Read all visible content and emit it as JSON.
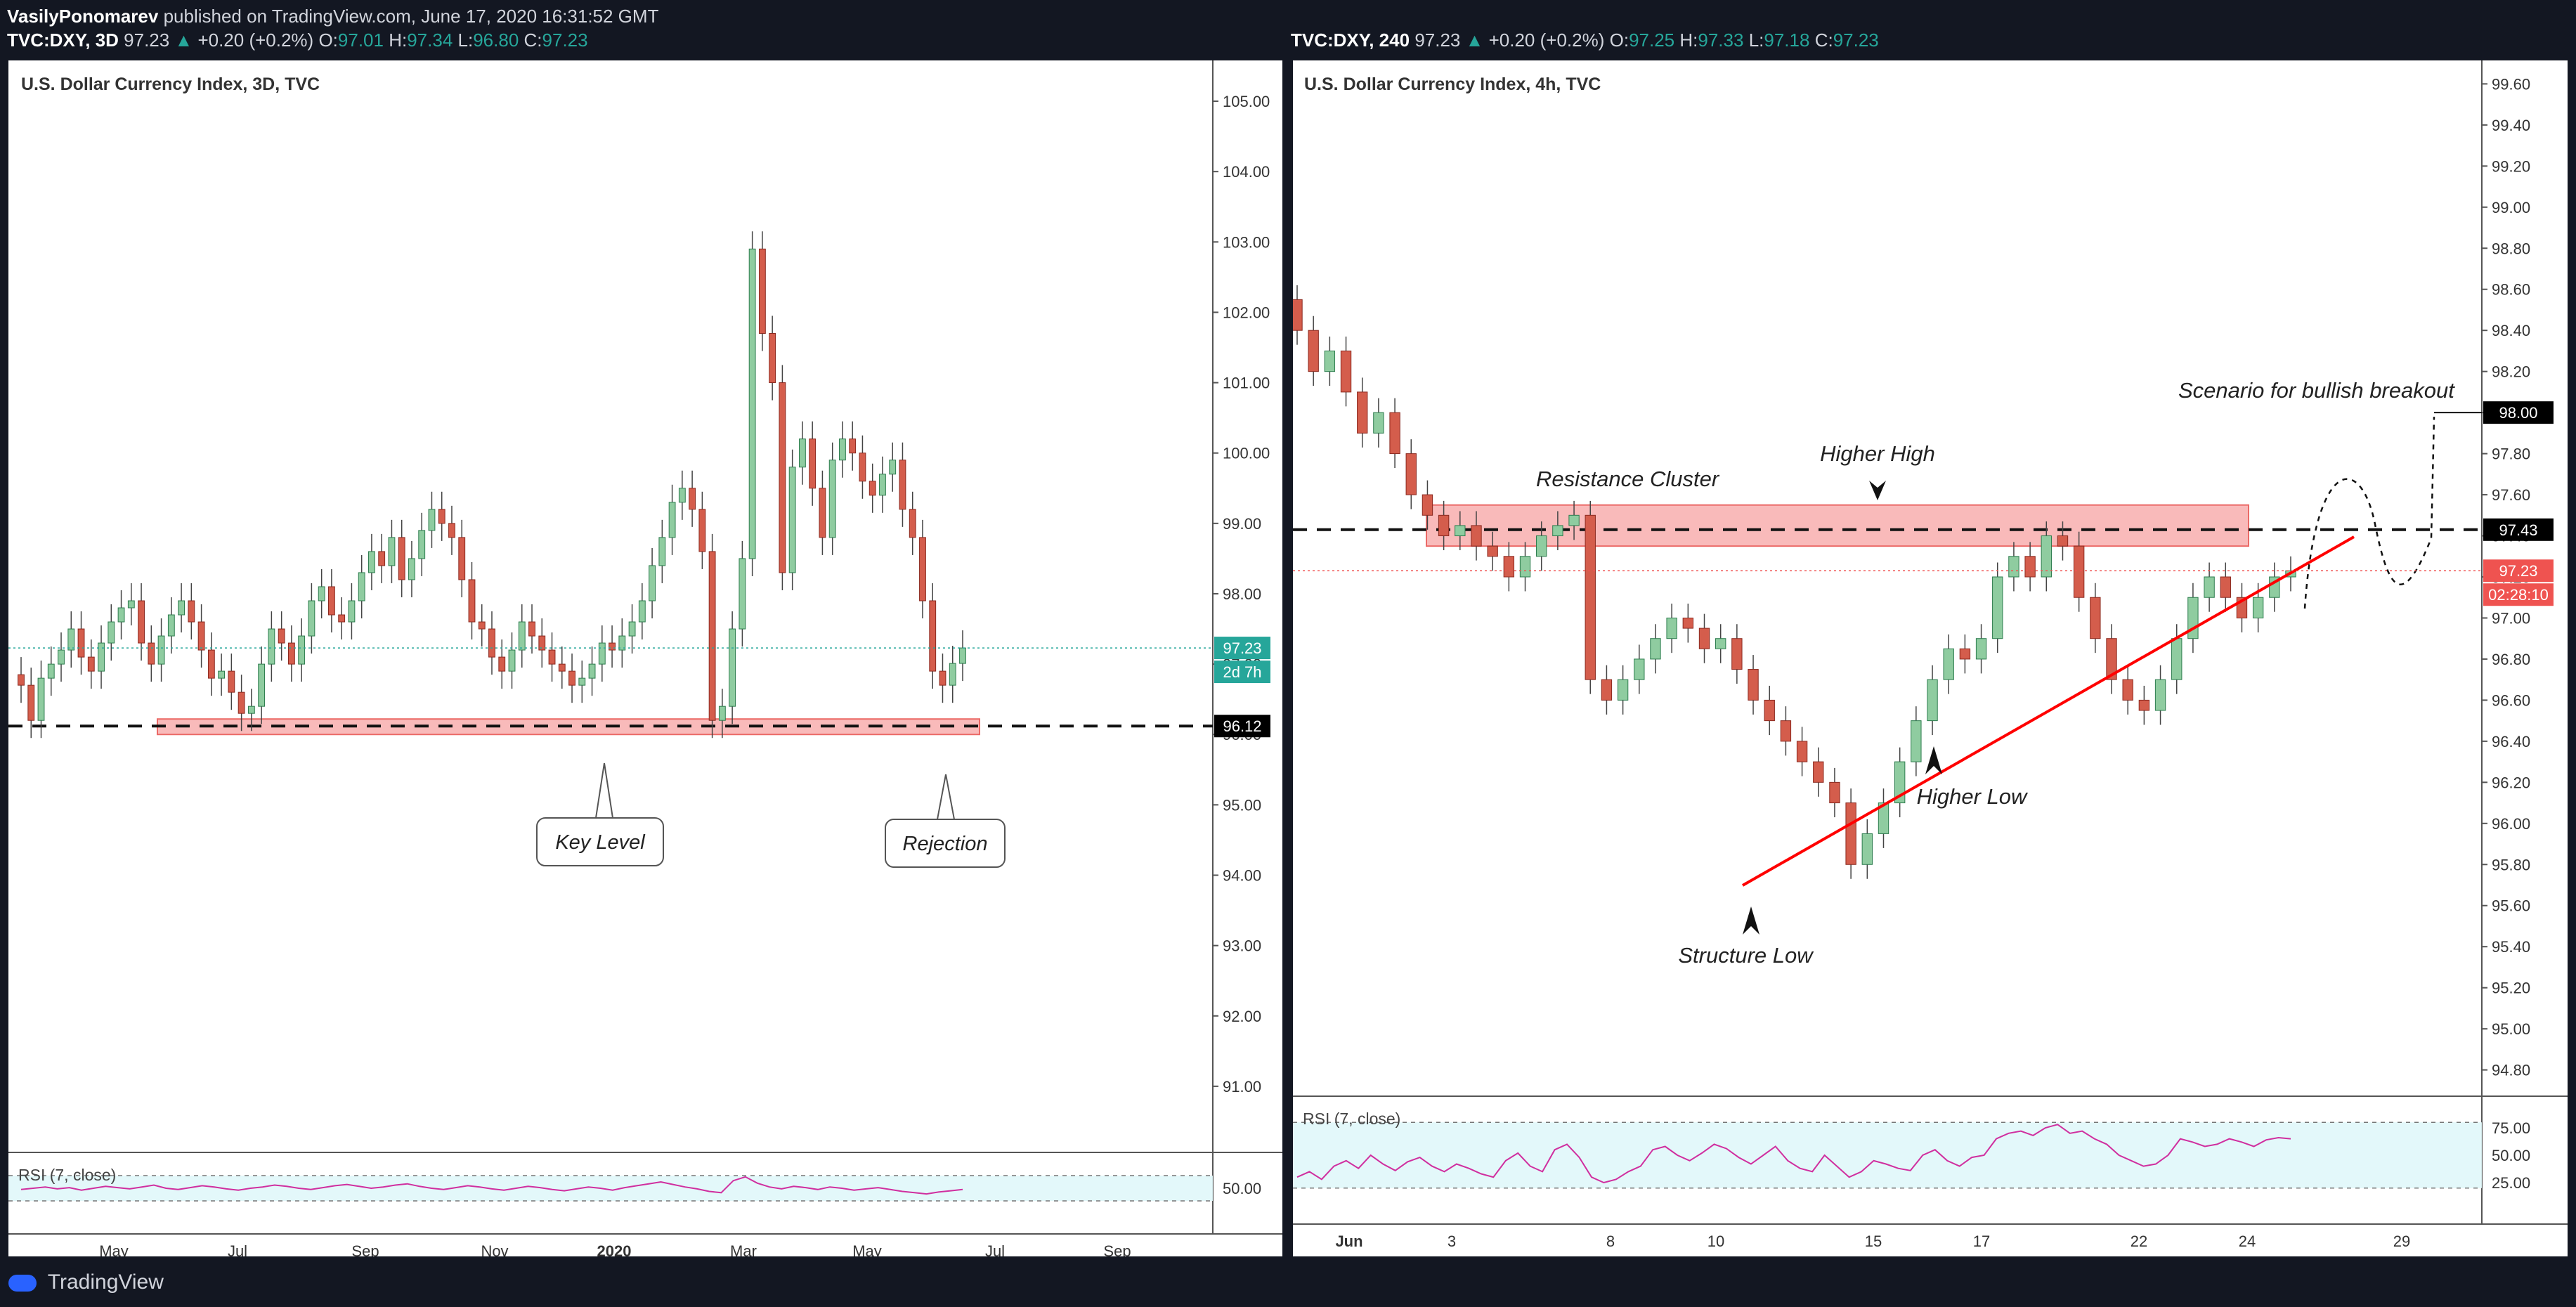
{
  "header": {
    "author": "VasilyPonomarev",
    "published": "published on TradingView.com, June 17, 2020 16:31:52 GMT",
    "left_symbol": "TVC:DXY, 3D",
    "left_price": "97.23",
    "left_change": "+0.20 (+0.2%)",
    "left_o": "97.01",
    "left_h": "97.34",
    "left_l": "96.80",
    "left_c": "97.23",
    "right_symbol": "TVC:DXY, 240",
    "right_price": "97.23",
    "right_change": "+0.20 (+0.2%)",
    "right_o": "97.25",
    "right_h": "97.33",
    "right_l": "97.18",
    "right_c": "97.23"
  },
  "footer": {
    "brand": "TradingView"
  },
  "colors": {
    "up": "#26a69a",
    "upBody": "#8fcca0",
    "down": "#ef5350",
    "downBody": "#d45d4c",
    "zone": "#f7a3a3",
    "rsi": "#d02f9f",
    "trend": "#ff0000"
  },
  "chart_data": [
    {
      "type": "candlestick",
      "title": "U.S. Dollar Currency Index, 3D, TVC",
      "y_range": [
        90.2,
        105.4
      ],
      "y_ticks": [
        "105.00",
        "104.00",
        "103.00",
        "102.00",
        "101.00",
        "100.00",
        "99.00",
        "98.00",
        "97.00",
        "96.00",
        "95.00",
        "94.00",
        "93.00",
        "92.00",
        "91.00"
      ],
      "x_ticks": [
        "May",
        "Jul",
        "Sep",
        "Nov",
        "2020",
        "Mar",
        "May",
        "Jul",
        "Sep"
      ],
      "last_price_label": "97.23",
      "countdown": "2d 7h",
      "level_label": "96.12",
      "key_level": 96.12,
      "support_zone": [
        96.0,
        96.22
      ],
      "annotations": [
        "Key Level",
        "Rejection"
      ],
      "rsi_label": "RSI (7, close)",
      "rsi_ticks": [
        "50.00"
      ],
      "rsi": [
        48,
        50,
        52,
        49,
        51,
        47,
        50,
        53,
        51,
        49,
        52,
        55,
        50,
        48,
        51,
        54,
        52,
        49,
        47,
        50,
        52,
        55,
        53,
        50,
        48,
        51,
        54,
        56,
        53,
        50,
        52,
        55,
        57,
        53,
        50,
        48,
        51,
        54,
        52,
        49,
        47,
        50,
        53,
        51,
        48,
        46,
        49,
        52,
        50,
        47,
        51,
        54,
        57,
        60,
        56,
        52,
        49,
        45,
        43,
        62,
        68,
        58,
        52,
        49,
        53,
        51,
        48,
        52,
        50,
        47,
        49,
        51,
        48,
        45,
        43,
        41,
        44,
        46,
        48
      ],
      "closes": [
        96.7,
        96.2,
        96.8,
        97.0,
        97.2,
        97.5,
        97.1,
        96.9,
        97.3,
        97.6,
        97.8,
        97.9,
        97.3,
        97.0,
        97.4,
        97.7,
        97.9,
        97.6,
        97.2,
        96.8,
        96.9,
        96.6,
        96.3,
        96.4,
        97.0,
        97.5,
        97.3,
        97.0,
        97.4,
        97.9,
        98.1,
        97.7,
        97.6,
        97.9,
        98.3,
        98.6,
        98.4,
        98.8,
        98.2,
        98.5,
        98.9,
        99.2,
        99.0,
        98.8,
        98.2,
        97.6,
        97.5,
        97.1,
        96.9,
        97.2,
        97.6,
        97.4,
        97.2,
        97.0,
        96.9,
        96.7,
        96.8,
        97.0,
        97.3,
        97.2,
        97.4,
        97.6,
        97.9,
        98.4,
        98.8,
        99.3,
        99.5,
        99.2,
        98.6,
        96.2,
        96.4,
        97.5,
        98.5,
        102.9,
        101.7,
        101.0,
        98.3,
        99.8,
        100.2,
        99.5,
        98.8,
        99.9,
        100.2,
        100.0,
        99.6,
        99.4,
        99.7,
        99.9,
        99.2,
        98.8,
        97.9,
        96.9,
        96.7,
        97.01,
        97.23
      ]
    },
    {
      "type": "candlestick",
      "title": "U.S. Dollar Currency Index, 4h, TVC",
      "y_range": [
        94.72,
        99.68
      ],
      "y_ticks": [
        "99.60",
        "99.40",
        "99.20",
        "99.00",
        "98.80",
        "98.60",
        "98.40",
        "98.20",
        "98.00",
        "97.80",
        "97.60",
        "97.40",
        "97.20",
        "97.00",
        "96.80",
        "96.60",
        "96.40",
        "96.20",
        "96.00",
        "95.80",
        "95.60",
        "95.40",
        "95.20",
        "95.00",
        "94.80"
      ],
      "x_ticks": [
        "Jun",
        "3",
        "8",
        "10",
        "15",
        "17",
        "22",
        "24",
        "29"
      ],
      "last_price_label": "97.23",
      "countdown": "02:28:10",
      "target_label": "98.00",
      "resistance_label": "97.43",
      "resistance_level": 97.43,
      "resistance_zone": [
        97.35,
        97.55
      ],
      "annotations": [
        "Resistance Cluster",
        "Higher High",
        "Higher Low",
        "Structure Low",
        "Scenario for bullish breakout"
      ],
      "rsi_label": "RSI (7, close)",
      "rsi_ticks": [
        "75.00",
        "50.00",
        "25.00"
      ],
      "rsi": [
        30,
        35,
        28,
        40,
        45,
        38,
        50,
        42,
        36,
        44,
        48,
        40,
        35,
        42,
        38,
        33,
        30,
        45,
        52,
        40,
        35,
        55,
        60,
        48,
        30,
        25,
        28,
        35,
        40,
        55,
        58,
        50,
        45,
        52,
        60,
        56,
        48,
        42,
        50,
        58,
        45,
        38,
        35,
        50,
        40,
        30,
        35,
        45,
        42,
        38,
        36,
        50,
        55,
        45,
        40,
        48,
        50,
        65,
        70,
        72,
        68,
        75,
        78,
        70,
        72,
        65,
        60,
        50,
        45,
        40,
        42,
        50,
        65,
        62,
        58,
        60,
        65,
        62,
        58,
        64,
        66,
        65
      ],
      "closes": [
        98.4,
        98.2,
        98.3,
        98.1,
        97.9,
        98.0,
        97.8,
        97.6,
        97.5,
        97.4,
        97.45,
        97.35,
        97.3,
        97.2,
        97.3,
        97.4,
        97.45,
        97.5,
        96.7,
        96.6,
        96.7,
        96.8,
        96.9,
        97.0,
        96.95,
        96.85,
        96.9,
        96.75,
        96.6,
        96.5,
        96.4,
        96.3,
        96.2,
        96.1,
        95.8,
        95.95,
        96.1,
        96.3,
        96.5,
        96.7,
        96.85,
        96.8,
        96.9,
        97.2,
        97.3,
        97.2,
        97.4,
        97.35,
        97.1,
        96.9,
        96.7,
        96.6,
        96.55,
        96.7,
        96.9,
        97.1,
        97.2,
        97.1,
        97.0,
        97.1,
        97.2,
        97.23
      ],
      "projection_target": 98.0
    }
  ]
}
